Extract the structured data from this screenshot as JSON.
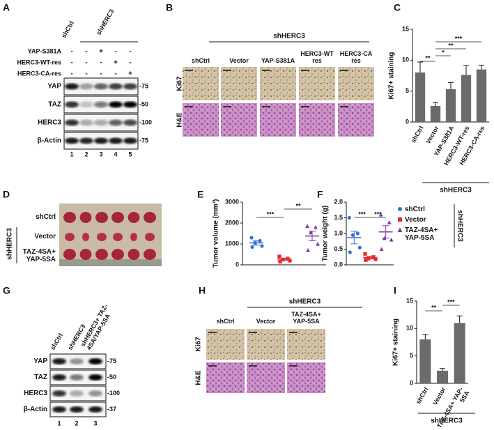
{
  "panel_labels": [
    "A",
    "B",
    "C",
    "D",
    "E",
    "F",
    "G",
    "H",
    "I"
  ],
  "panel_a": {
    "columns": [
      "shCtrl",
      "shHERC3"
    ],
    "rows": [
      {
        "label": "YAP-S381A",
        "marks": [
          "-",
          "-",
          "+",
          "-",
          "-"
        ]
      },
      {
        "label": "HERC3-WT-res",
        "marks": [
          "-",
          "-",
          "-",
          "+",
          "-"
        ]
      },
      {
        "label": "HERC3-CA-res",
        "marks": [
          "-",
          "-",
          "-",
          "-",
          "+"
        ]
      }
    ],
    "blots": [
      {
        "label": "YAP",
        "marker": "-75"
      },
      {
        "label": "TAZ",
        "marker": "-50"
      },
      {
        "label": "HERC3",
        "marker": "-100"
      },
      {
        "label": "β-Actin",
        "marker": "-75"
      }
    ],
    "lanes": [
      "1",
      "2",
      "3",
      "4",
      "5"
    ]
  },
  "panel_b": {
    "group": "shHERC3",
    "columns": [
      "shCtrl",
      "Vector",
      "YAP-S381A",
      "HERC3-WT res",
      "HERC3-CA res"
    ],
    "rows": [
      "Ki67",
      "H&E"
    ]
  },
  "panel_d": {
    "group": "shHERC3",
    "rows": [
      "shCtrl",
      "Vector",
      "TAZ-4SA+ YAP-5SA"
    ]
  },
  "panel_g": {
    "columns": [
      "shCtrl",
      "shHERC3",
      "shHERC3+ TAZ-4SA/YAP-5SA"
    ],
    "blots": [
      {
        "label": "YAP",
        "marker": "-75"
      },
      {
        "label": "TAZ",
        "marker": "-50"
      },
      {
        "label": "HERC3",
        "marker": "-100"
      },
      {
        "label": "β-Actin",
        "marker": "-37"
      }
    ],
    "lanes": [
      "1",
      "2",
      "3"
    ]
  },
  "panel_h": {
    "group": "shHERC3",
    "columns": [
      "shCtrl",
      "Vector",
      "TAZ-4SA+ YAP-5SA"
    ],
    "rows": [
      "Ki67",
      "H&E"
    ]
  },
  "chart_data": [
    {
      "type": "bar",
      "ylabel": "Ki67+ staining",
      "categories": [
        "shCtrl",
        "Vector",
        "YAP-S381A",
        "HERC3-WT-res",
        "HERC3-CA-res"
      ],
      "values": [
        8,
        2.6,
        5.3,
        7.6,
        8.5
      ],
      "errors": [
        1.7,
        0.6,
        1.1,
        1.5,
        0.7
      ],
      "color": "#6b6b6b",
      "ylim": [
        0,
        15
      ],
      "yticks": [
        0,
        5,
        10,
        15
      ],
      "annotations": [
        "**",
        "*",
        "**",
        "***"
      ],
      "group": "shHERC3"
    },
    {
      "type": "dotplot",
      "ylabel": "Tumor volume (mm³)",
      "ylim": [
        0,
        3000
      ],
      "yticks": [
        0,
        1000,
        2000,
        3000
      ],
      "series": [
        {
          "color": "#3a6fd1",
          "marker": "circle",
          "values": [
            1300,
            1150,
            1050,
            900,
            850
          ],
          "mean": 1050,
          "sem": 110
        },
        {
          "color": "#e8262b",
          "marker": "square",
          "values": [
            400,
            300,
            250,
            200,
            150
          ],
          "mean": 270,
          "sem": 50
        },
        {
          "color": "#7b3aa8",
          "marker": "triangle",
          "values": [
            1850,
            1800,
            1550,
            1000,
            700
          ],
          "mean": 1380,
          "sem": 230
        }
      ],
      "annotations": [
        "***",
        "**"
      ]
    },
    {
      "type": "dotplot",
      "ylabel": "Tumor weight (g)",
      "ylim": [
        0,
        2
      ],
      "yticks": [
        {
          "value": 0,
          "label": "0.0"
        },
        {
          "value": 0.5,
          "label": "0.5"
        },
        {
          "value": 1,
          "label": "1.0"
        },
        {
          "value": 1.5,
          "label": "1.5"
        },
        {
          "value": 2,
          "label": "2.0"
        }
      ],
      "series": [
        {
          "name": "shCtrl",
          "color": "#3a6fd1",
          "marker": "circle",
          "values": [
            1.5,
            1.0,
            0.95,
            0.55,
            0.4
          ],
          "mean": 0.87,
          "sem": 0.2
        },
        {
          "name": "Vector",
          "color": "#e8262b",
          "marker": "square",
          "values": [
            0.35,
            0.25,
            0.2,
            0.18,
            0.15
          ],
          "mean": 0.23,
          "sem": 0.04
        },
        {
          "name": "TAZ-4SA+ YAP-5SA",
          "color": "#7b3aa8",
          "marker": "triangle",
          "values": [
            1.6,
            1.35,
            0.85,
            0.8,
            0.5
          ],
          "mean": 1.05,
          "sem": 0.2
        }
      ],
      "annotations": [
        "***",
        "***"
      ],
      "group": "shHERC3"
    },
    {
      "type": "bar",
      "ylabel": "Ki67+ staining",
      "categories": [
        "shCtrl",
        "Vector",
        "TAZ-4SA+ YAP-5SA"
      ],
      "values": [
        8,
        2.3,
        11
      ],
      "errors": [
        0.9,
        0.4,
        1.3
      ],
      "color": "#6b6b6b",
      "ylim": [
        0,
        15
      ],
      "yticks": [
        0,
        5,
        10,
        15
      ],
      "annotations": [
        "**",
        "***"
      ],
      "group": "shHERC3"
    }
  ]
}
